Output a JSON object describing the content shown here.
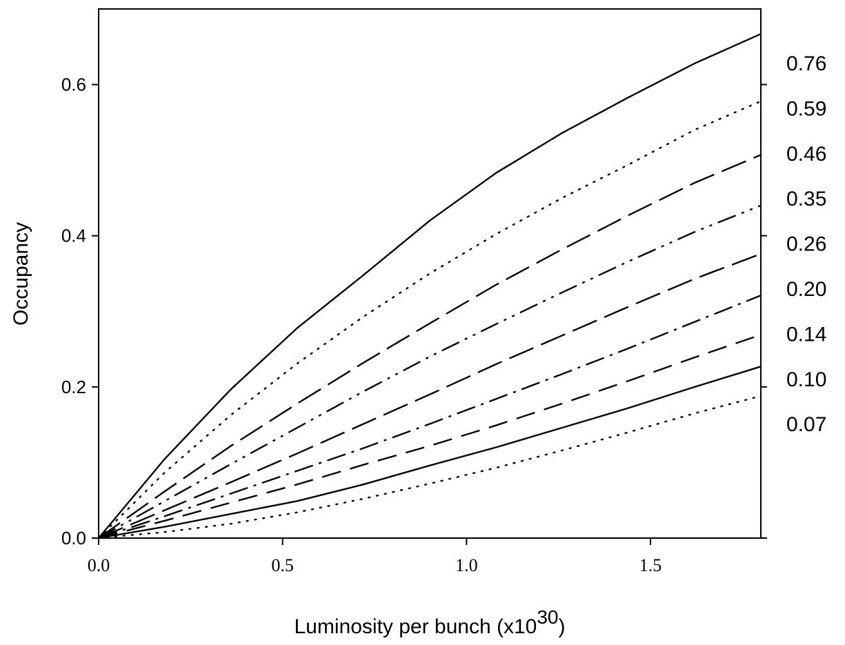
{
  "chart_data": {
    "type": "line",
    "title": "",
    "xlabel": "Luminosity per bunch (x10",
    "xlabel_sup": "30",
    "xlabel_end": ")",
    "ylabel": "Occupancy",
    "xlim": [
      0,
      1.8
    ],
    "ylim": [
      0,
      0.7
    ],
    "x_ticks": [
      0.0,
      0.5,
      1.0,
      1.5
    ],
    "x_tick_labels": [
      "0.0",
      "0.5",
      "1.0",
      "1.5"
    ],
    "y_ticks": [
      0.0,
      0.2,
      0.4,
      0.6
    ],
    "y_tick_labels": [
      "0.0",
      "0.2",
      "0.4",
      "0.6"
    ],
    "grid": false,
    "legend": "right-outside",
    "x": [
      0,
      0.18,
      0.36,
      0.54,
      0.72,
      0.9,
      1.08,
      1.26,
      1.44,
      1.62,
      1.8
    ],
    "series": [
      {
        "name": "0.76",
        "style": "solid",
        "values": [
          0,
          0.105,
          0.197,
          0.278,
          0.348,
          0.42,
          0.483,
          0.536,
          0.583,
          0.628,
          0.667
        ]
      },
      {
        "name": "0.59",
        "style": "dotted",
        "values": [
          0,
          0.087,
          0.163,
          0.231,
          0.293,
          0.35,
          0.402,
          0.45,
          0.494,
          0.54,
          0.578
        ]
      },
      {
        "name": "0.46",
        "style": "longdash",
        "values": [
          0,
          0.062,
          0.122,
          0.178,
          0.232,
          0.284,
          0.335,
          0.382,
          0.427,
          0.47,
          0.507
        ]
      },
      {
        "name": "0.35",
        "style": "dashdotdot",
        "values": [
          0,
          0.049,
          0.098,
          0.146,
          0.194,
          0.24,
          0.283,
          0.325,
          0.366,
          0.405,
          0.44
        ]
      },
      {
        "name": "0.26",
        "style": "longdash",
        "values": [
          0,
          0.037,
          0.074,
          0.112,
          0.151,
          0.19,
          0.23,
          0.268,
          0.306,
          0.343,
          0.376
        ]
      },
      {
        "name": "0.20",
        "style": "dashdot",
        "values": [
          0,
          0.029,
          0.059,
          0.089,
          0.119,
          0.151,
          0.184,
          0.217,
          0.251,
          0.286,
          0.321
        ]
      },
      {
        "name": "0.14",
        "style": "dash",
        "values": [
          0,
          0.023,
          0.047,
          0.071,
          0.097,
          0.122,
          0.149,
          0.178,
          0.208,
          0.239,
          0.269
        ]
      },
      {
        "name": "0.10",
        "style": "solid",
        "values": [
          0,
          0.015,
          0.032,
          0.049,
          0.071,
          0.096,
          0.12,
          0.146,
          0.172,
          0.2,
          0.227
        ]
      },
      {
        "name": "0.07",
        "style": "dotted",
        "values": [
          0,
          0.008,
          0.019,
          0.034,
          0.052,
          0.072,
          0.093,
          0.116,
          0.14,
          0.165,
          0.188
        ]
      }
    ],
    "right_axis_labels": [
      "0.76",
      "0.59",
      "0.46",
      "0.35",
      "0.26",
      "0.20",
      "0.14",
      "0.10",
      "0.07"
    ],
    "colors": {
      "line": "#000000",
      "background": "#ffffff"
    }
  }
}
